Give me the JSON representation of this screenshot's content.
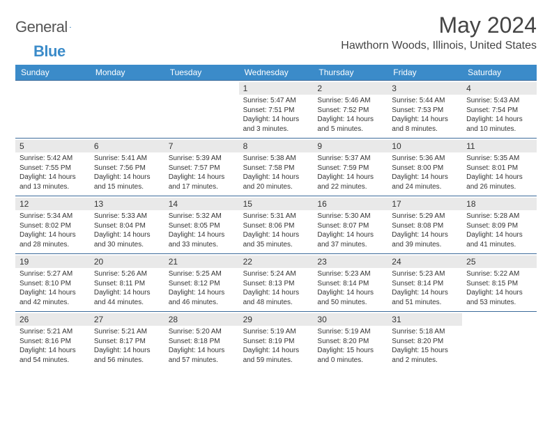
{
  "logo": {
    "word1": "General",
    "word2": "Blue"
  },
  "title": "May 2024",
  "location": "Hawthorn Woods, Illinois, United States",
  "colors": {
    "header_bg": "#3b8bc9",
    "header_text": "#ffffff",
    "daynum_bg": "#e9e9e9",
    "week_border": "#3b6a9a",
    "text": "#333333",
    "page_bg": "#ffffff"
  },
  "typography": {
    "title_fontsize": 32,
    "location_fontsize": 16,
    "header_fontsize": 12,
    "daynum_fontsize": 12,
    "body_fontsize": 10
  },
  "layout": {
    "type": "calendar-month",
    "columns": 7,
    "rows": 5,
    "first_weekday": "Sunday"
  },
  "day_headers": [
    "Sunday",
    "Monday",
    "Tuesday",
    "Wednesday",
    "Thursday",
    "Friday",
    "Saturday"
  ],
  "weeks": [
    [
      {
        "day": "",
        "sunrise": "",
        "sunset": "",
        "daylight": ""
      },
      {
        "day": "",
        "sunrise": "",
        "sunset": "",
        "daylight": ""
      },
      {
        "day": "",
        "sunrise": "",
        "sunset": "",
        "daylight": ""
      },
      {
        "day": "1",
        "sunrise": "Sunrise: 5:47 AM",
        "sunset": "Sunset: 7:51 PM",
        "daylight": "Daylight: 14 hours and 3 minutes."
      },
      {
        "day": "2",
        "sunrise": "Sunrise: 5:46 AM",
        "sunset": "Sunset: 7:52 PM",
        "daylight": "Daylight: 14 hours and 5 minutes."
      },
      {
        "day": "3",
        "sunrise": "Sunrise: 5:44 AM",
        "sunset": "Sunset: 7:53 PM",
        "daylight": "Daylight: 14 hours and 8 minutes."
      },
      {
        "day": "4",
        "sunrise": "Sunrise: 5:43 AM",
        "sunset": "Sunset: 7:54 PM",
        "daylight": "Daylight: 14 hours and 10 minutes."
      }
    ],
    [
      {
        "day": "5",
        "sunrise": "Sunrise: 5:42 AM",
        "sunset": "Sunset: 7:55 PM",
        "daylight": "Daylight: 14 hours and 13 minutes."
      },
      {
        "day": "6",
        "sunrise": "Sunrise: 5:41 AM",
        "sunset": "Sunset: 7:56 PM",
        "daylight": "Daylight: 14 hours and 15 minutes."
      },
      {
        "day": "7",
        "sunrise": "Sunrise: 5:39 AM",
        "sunset": "Sunset: 7:57 PM",
        "daylight": "Daylight: 14 hours and 17 minutes."
      },
      {
        "day": "8",
        "sunrise": "Sunrise: 5:38 AM",
        "sunset": "Sunset: 7:58 PM",
        "daylight": "Daylight: 14 hours and 20 minutes."
      },
      {
        "day": "9",
        "sunrise": "Sunrise: 5:37 AM",
        "sunset": "Sunset: 7:59 PM",
        "daylight": "Daylight: 14 hours and 22 minutes."
      },
      {
        "day": "10",
        "sunrise": "Sunrise: 5:36 AM",
        "sunset": "Sunset: 8:00 PM",
        "daylight": "Daylight: 14 hours and 24 minutes."
      },
      {
        "day": "11",
        "sunrise": "Sunrise: 5:35 AM",
        "sunset": "Sunset: 8:01 PM",
        "daylight": "Daylight: 14 hours and 26 minutes."
      }
    ],
    [
      {
        "day": "12",
        "sunrise": "Sunrise: 5:34 AM",
        "sunset": "Sunset: 8:02 PM",
        "daylight": "Daylight: 14 hours and 28 minutes."
      },
      {
        "day": "13",
        "sunrise": "Sunrise: 5:33 AM",
        "sunset": "Sunset: 8:04 PM",
        "daylight": "Daylight: 14 hours and 30 minutes."
      },
      {
        "day": "14",
        "sunrise": "Sunrise: 5:32 AM",
        "sunset": "Sunset: 8:05 PM",
        "daylight": "Daylight: 14 hours and 33 minutes."
      },
      {
        "day": "15",
        "sunrise": "Sunrise: 5:31 AM",
        "sunset": "Sunset: 8:06 PM",
        "daylight": "Daylight: 14 hours and 35 minutes."
      },
      {
        "day": "16",
        "sunrise": "Sunrise: 5:30 AM",
        "sunset": "Sunset: 8:07 PM",
        "daylight": "Daylight: 14 hours and 37 minutes."
      },
      {
        "day": "17",
        "sunrise": "Sunrise: 5:29 AM",
        "sunset": "Sunset: 8:08 PM",
        "daylight": "Daylight: 14 hours and 39 minutes."
      },
      {
        "day": "18",
        "sunrise": "Sunrise: 5:28 AM",
        "sunset": "Sunset: 8:09 PM",
        "daylight": "Daylight: 14 hours and 41 minutes."
      }
    ],
    [
      {
        "day": "19",
        "sunrise": "Sunrise: 5:27 AM",
        "sunset": "Sunset: 8:10 PM",
        "daylight": "Daylight: 14 hours and 42 minutes."
      },
      {
        "day": "20",
        "sunrise": "Sunrise: 5:26 AM",
        "sunset": "Sunset: 8:11 PM",
        "daylight": "Daylight: 14 hours and 44 minutes."
      },
      {
        "day": "21",
        "sunrise": "Sunrise: 5:25 AM",
        "sunset": "Sunset: 8:12 PM",
        "daylight": "Daylight: 14 hours and 46 minutes."
      },
      {
        "day": "22",
        "sunrise": "Sunrise: 5:24 AM",
        "sunset": "Sunset: 8:13 PM",
        "daylight": "Daylight: 14 hours and 48 minutes."
      },
      {
        "day": "23",
        "sunrise": "Sunrise: 5:23 AM",
        "sunset": "Sunset: 8:14 PM",
        "daylight": "Daylight: 14 hours and 50 minutes."
      },
      {
        "day": "24",
        "sunrise": "Sunrise: 5:23 AM",
        "sunset": "Sunset: 8:14 PM",
        "daylight": "Daylight: 14 hours and 51 minutes."
      },
      {
        "day": "25",
        "sunrise": "Sunrise: 5:22 AM",
        "sunset": "Sunset: 8:15 PM",
        "daylight": "Daylight: 14 hours and 53 minutes."
      }
    ],
    [
      {
        "day": "26",
        "sunrise": "Sunrise: 5:21 AM",
        "sunset": "Sunset: 8:16 PM",
        "daylight": "Daylight: 14 hours and 54 minutes."
      },
      {
        "day": "27",
        "sunrise": "Sunrise: 5:21 AM",
        "sunset": "Sunset: 8:17 PM",
        "daylight": "Daylight: 14 hours and 56 minutes."
      },
      {
        "day": "28",
        "sunrise": "Sunrise: 5:20 AM",
        "sunset": "Sunset: 8:18 PM",
        "daylight": "Daylight: 14 hours and 57 minutes."
      },
      {
        "day": "29",
        "sunrise": "Sunrise: 5:19 AM",
        "sunset": "Sunset: 8:19 PM",
        "daylight": "Daylight: 14 hours and 59 minutes."
      },
      {
        "day": "30",
        "sunrise": "Sunrise: 5:19 AM",
        "sunset": "Sunset: 8:20 PM",
        "daylight": "Daylight: 15 hours and 0 minutes."
      },
      {
        "day": "31",
        "sunrise": "Sunrise: 5:18 AM",
        "sunset": "Sunset: 8:20 PM",
        "daylight": "Daylight: 15 hours and 2 minutes."
      },
      {
        "day": "",
        "sunrise": "",
        "sunset": "",
        "daylight": ""
      }
    ]
  ]
}
